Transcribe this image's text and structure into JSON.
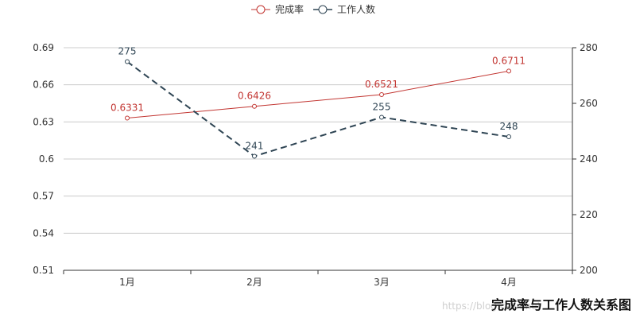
{
  "chart_data": {
    "type": "line",
    "categories": [
      "1月",
      "2月",
      "3月",
      "4月"
    ],
    "series": [
      {
        "name": "完成率",
        "axis": "left",
        "values": [
          0.6331,
          0.6426,
          0.6521,
          0.6711
        ],
        "labels": [
          "0.6331",
          "0.6426",
          "0.6521",
          "0.6711"
        ],
        "color": "#c23531",
        "line_style": "solid"
      },
      {
        "name": "工作人数",
        "axis": "right",
        "values": [
          275,
          241,
          255,
          248
        ],
        "labels": [
          "275",
          "241",
          "255",
          "248"
        ],
        "color": "#2f4554",
        "line_style": "dashed"
      }
    ],
    "y_left": {
      "ylim": [
        0.51,
        0.69
      ],
      "ticks": [
        "0.51",
        "0.54",
        "0.57",
        "0.6",
        "0.63",
        "0.66",
        "0.69"
      ]
    },
    "y_right": {
      "ylim": [
        200,
        280
      ],
      "ticks": [
        "200",
        "220",
        "240",
        "260",
        "280"
      ]
    },
    "grid": true,
    "legend_position": "top-center",
    "title": "完成率与工作人数关系图"
  },
  "watermark": "https://blog.csdn.net"
}
